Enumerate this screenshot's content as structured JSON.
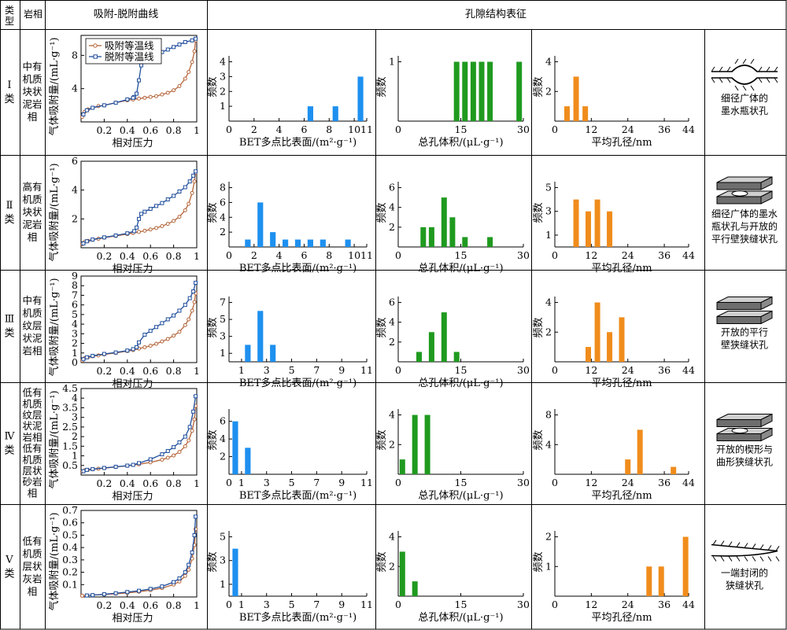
{
  "header": {
    "type_label": "类型",
    "facies_label": "岩相",
    "curve_label": "吸附-脱附曲线",
    "pore_label": "孔隙结构表征"
  },
  "axis_labels": {
    "iso_x": "相对压力",
    "iso_y": "气体吸附量/(mL·g⁻¹)",
    "freq": "频数",
    "bet_x": "BET多点比表面/(m²·g⁻¹)",
    "vol_x": "总孔体积/(μL·g⁻¹)",
    "pd_x": "平均孔径/nm"
  },
  "legend": {
    "adsorption": "吸附等温线",
    "desorption": "脱附等温线"
  },
  "colors": {
    "adsorption": "#b5653a",
    "desorption": "#1f4e9c",
    "bet_bar": "#1e90ef",
    "vol_bar": "#1f9a1f",
    "pd_bar": "#f08c1c"
  },
  "rows": [
    {
      "type_label": "Ⅰ类",
      "facies": [
        "中有",
        "机质",
        "块状",
        "泥岩",
        "相"
      ],
      "pore_type": [
        "细径广体的",
        "墨水瓶状孔"
      ],
      "pore_icon": "ink-bottle-pore-icon"
    },
    {
      "type_label": "Ⅱ类",
      "facies": [
        "高有",
        "机质",
        "块状",
        "泥岩",
        "相"
      ],
      "pore_type": [
        "细径广体的墨水",
        "瓶状孔与开放的",
        "平行壁狭缝状孔"
      ],
      "pore_icon": "ink-bottle-and-parallel-slit-icon"
    },
    {
      "type_label": "Ⅲ类",
      "facies": [
        "中有",
        "机质",
        "纹层",
        "状泥",
        "岩相"
      ],
      "pore_type": [
        "开放的平行",
        "壁狭缝状孔"
      ],
      "pore_icon": "parallel-slit-pore-icon"
    },
    {
      "type_label": "Ⅳ类",
      "facies": [
        "低有",
        "机质",
        "纹层",
        "状泥",
        "岩相",
        "低有",
        "机质",
        "层状",
        "砂岩",
        "相"
      ],
      "pore_type": [
        "开放的楔形与",
        "曲形狭缝状孔"
      ],
      "pore_icon": "wedge-slit-pore-icon"
    },
    {
      "type_label": "Ⅴ类",
      "facies": [
        "低有",
        "机质",
        "层状",
        "灰岩",
        "相"
      ],
      "pore_type": [
        "一端封闭的",
        "狭缝状孔"
      ],
      "pore_icon": "closed-slit-pore-icon"
    }
  ],
  "chart_data": [
    {
      "type": "line",
      "panel": "isotherm",
      "row": 1,
      "xlabel": "相对压力",
      "ylabel": "气体吸附量/(mL·g⁻¹)",
      "xlim": [
        0,
        1.0
      ],
      "ylim": [
        0,
        10.4
      ],
      "xticks": [
        0.2,
        0.4,
        0.6,
        0.8,
        1.0
      ],
      "yticks": [
        4,
        8
      ],
      "legend": "top-left",
      "series": [
        {
          "name": "吸附等温线",
          "x": [
            0.01,
            0.03,
            0.06,
            0.1,
            0.15,
            0.2,
            0.3,
            0.4,
            0.45,
            0.5,
            0.55,
            0.6,
            0.65,
            0.7,
            0.75,
            0.8,
            0.85,
            0.9,
            0.93,
            0.96,
            0.98,
            0.99
          ],
          "y": [
            0.6,
            1.2,
            1.5,
            1.7,
            1.9,
            2.0,
            2.3,
            2.6,
            2.7,
            2.8,
            2.9,
            3.0,
            3.1,
            3.3,
            3.5,
            3.8,
            4.3,
            5.2,
            6.0,
            7.2,
            8.5,
            9.8
          ]
        },
        {
          "name": "脱附等温线",
          "x": [
            0.99,
            0.96,
            0.9,
            0.85,
            0.8,
            0.75,
            0.7,
            0.65,
            0.6,
            0.55,
            0.52,
            0.5,
            0.48,
            0.46,
            0.45,
            0.4,
            0.3,
            0.2,
            0.1,
            0.05,
            0.02
          ],
          "y": [
            10.0,
            9.8,
            9.6,
            9.3,
            9.0,
            8.7,
            8.4,
            8.0,
            7.6,
            7.2,
            6.8,
            5.0,
            3.4,
            3.0,
            2.9,
            2.7,
            2.3,
            2.0,
            1.7,
            1.4,
            0.9
          ]
        }
      ]
    },
    {
      "type": "line",
      "panel": "isotherm",
      "row": 2,
      "xlabel": "相对压力",
      "ylabel": "气体吸附量/(mL·g⁻¹)",
      "xlim": [
        0,
        1.0
      ],
      "ylim": [
        0,
        6
      ],
      "xticks": [
        0.2,
        0.4,
        0.6,
        0.8,
        1.0
      ],
      "yticks": [
        2,
        4,
        6
      ],
      "series": [
        {
          "name": "吸附等温线",
          "x": [
            0.01,
            0.03,
            0.06,
            0.1,
            0.15,
            0.2,
            0.3,
            0.4,
            0.45,
            0.5,
            0.55,
            0.6,
            0.65,
            0.7,
            0.75,
            0.8,
            0.85,
            0.9,
            0.93,
            0.96,
            0.98,
            0.99
          ],
          "y": [
            0.25,
            0.4,
            0.48,
            0.55,
            0.62,
            0.7,
            0.82,
            0.95,
            1.02,
            1.1,
            1.18,
            1.27,
            1.37,
            1.5,
            1.66,
            1.86,
            2.15,
            2.6,
            3.05,
            3.8,
            4.6,
            5.2
          ]
        },
        {
          "name": "脱附等温线",
          "x": [
            0.99,
            0.97,
            0.94,
            0.9,
            0.85,
            0.8,
            0.75,
            0.7,
            0.65,
            0.6,
            0.55,
            0.52,
            0.5,
            0.48,
            0.46,
            0.4,
            0.3,
            0.2,
            0.1,
            0.05,
            0.02
          ],
          "y": [
            5.3,
            5.0,
            4.6,
            4.2,
            3.9,
            3.6,
            3.35,
            3.1,
            2.9,
            2.7,
            2.5,
            2.35,
            2.0,
            1.4,
            1.15,
            1.0,
            0.85,
            0.72,
            0.57,
            0.45,
            0.3
          ]
        }
      ]
    },
    {
      "type": "line",
      "panel": "isotherm",
      "row": 3,
      "xlabel": "相对压力",
      "ylabel": "气体吸附量/(mL·g⁻¹)",
      "xlim": [
        0,
        1.0
      ],
      "ylim": [
        0,
        9
      ],
      "xticks": [
        0.2,
        0.4,
        0.6,
        0.8,
        1.0
      ],
      "yticks": [
        0,
        1,
        2,
        3,
        4,
        5,
        6,
        7,
        8,
        9
      ],
      "series": [
        {
          "name": "吸附等温线",
          "x": [
            0.01,
            0.03,
            0.06,
            0.1,
            0.15,
            0.2,
            0.3,
            0.4,
            0.45,
            0.5,
            0.55,
            0.6,
            0.65,
            0.7,
            0.75,
            0.8,
            0.85,
            0.9,
            0.93,
            0.96,
            0.98,
            0.99
          ],
          "y": [
            0.2,
            0.45,
            0.55,
            0.65,
            0.75,
            0.85,
            1.0,
            1.2,
            1.3,
            1.45,
            1.6,
            1.75,
            1.95,
            2.2,
            2.45,
            2.8,
            3.2,
            3.9,
            4.5,
            5.4,
            6.3,
            7.2
          ]
        },
        {
          "name": "脱附等温线",
          "x": [
            0.99,
            0.97,
            0.94,
            0.9,
            0.85,
            0.8,
            0.75,
            0.7,
            0.65,
            0.6,
            0.55,
            0.5,
            0.48,
            0.45,
            0.4,
            0.3,
            0.2,
            0.1,
            0.05,
            0.02
          ],
          "y": [
            8.3,
            7.4,
            6.7,
            6.0,
            5.4,
            4.9,
            4.5,
            4.1,
            3.7,
            3.3,
            2.9,
            2.1,
            1.6,
            1.4,
            1.25,
            1.05,
            0.9,
            0.7,
            0.55,
            0.35
          ]
        }
      ]
    },
    {
      "type": "line",
      "panel": "isotherm",
      "row": 4,
      "xlabel": "相对压力",
      "ylabel": "气体吸附量/(mL·g⁻¹)",
      "xlim": [
        0,
        1.0
      ],
      "ylim": [
        0,
        4.5
      ],
      "xticks": [
        0.2,
        0.4,
        0.6,
        0.8,
        1.0
      ],
      "yticks": [
        0.5,
        1.0,
        1.5,
        2.0,
        2.5,
        3.0,
        3.5,
        4.0,
        4.5
      ],
      "series": [
        {
          "name": "吸附等温线",
          "x": [
            0.01,
            0.03,
            0.06,
            0.1,
            0.15,
            0.2,
            0.3,
            0.4,
            0.5,
            0.6,
            0.7,
            0.75,
            0.8,
            0.85,
            0.9,
            0.93,
            0.96,
            0.98,
            0.99
          ],
          "y": [
            0.18,
            0.24,
            0.27,
            0.3,
            0.33,
            0.36,
            0.42,
            0.48,
            0.56,
            0.66,
            0.8,
            0.9,
            1.02,
            1.2,
            1.5,
            1.8,
            2.3,
            2.9,
            3.6
          ]
        },
        {
          "name": "脱附等温线",
          "x": [
            0.99,
            0.97,
            0.94,
            0.9,
            0.85,
            0.8,
            0.75,
            0.7,
            0.6,
            0.5,
            0.45,
            0.4,
            0.3,
            0.2,
            0.1,
            0.05,
            0.02
          ],
          "y": [
            4.1,
            3.3,
            2.5,
            2.0,
            1.7,
            1.45,
            1.25,
            1.08,
            0.82,
            0.62,
            0.53,
            0.49,
            0.43,
            0.37,
            0.31,
            0.27,
            0.2
          ]
        }
      ]
    },
    {
      "type": "line",
      "panel": "isotherm",
      "row": 5,
      "xlabel": "相对压力",
      "ylabel": "气体吸附量/(mL·g⁻¹)",
      "xlim": [
        0,
        1.0
      ],
      "ylim": [
        0,
        0.7
      ],
      "xticks": [
        0.2,
        0.4,
        0.6,
        0.8,
        1.0
      ],
      "yticks": [
        0.1,
        0.2,
        0.3,
        0.4,
        0.5,
        0.6,
        0.7
      ],
      "series": [
        {
          "name": "吸附等温线",
          "x": [
            0.01,
            0.05,
            0.1,
            0.2,
            0.3,
            0.4,
            0.5,
            0.6,
            0.7,
            0.8,
            0.85,
            0.9,
            0.93,
            0.96,
            0.98,
            0.99
          ],
          "y": [
            0.01,
            0.012,
            0.015,
            0.02,
            0.026,
            0.033,
            0.042,
            0.055,
            0.072,
            0.1,
            0.125,
            0.17,
            0.22,
            0.31,
            0.42,
            0.55
          ]
        },
        {
          "name": "脱附等温线",
          "x": [
            0.99,
            0.98,
            0.96,
            0.93,
            0.9,
            0.85,
            0.8,
            0.7,
            0.6,
            0.5,
            0.4,
            0.3,
            0.2,
            0.1,
            0.05
          ],
          "y": [
            0.65,
            0.5,
            0.36,
            0.26,
            0.2,
            0.15,
            0.12,
            0.085,
            0.065,
            0.05,
            0.04,
            0.03,
            0.022,
            0.015,
            0.012
          ]
        }
      ]
    },
    {
      "type": "bar",
      "panel": "bet",
      "row": 1,
      "xlabel": "BET多点比表面/(m²·g⁻¹)",
      "ylabel": "频数",
      "xlim": [
        0,
        11
      ],
      "ylim": [
        0,
        4.4
      ],
      "xticks": [
        0,
        2,
        4,
        6,
        8,
        10,
        11
      ],
      "yticks": [
        1,
        2,
        3,
        4
      ],
      "x": [
        6.5,
        8.5,
        10.5
      ],
      "values": [
        1,
        1,
        3
      ]
    },
    {
      "type": "bar",
      "panel": "bet",
      "row": 2,
      "xlabel": "BET多点比表面/(m²·g⁻¹)",
      "ylabel": "频数",
      "xlim": [
        0,
        11
      ],
      "ylim": [
        0,
        8.8
      ],
      "xticks": [
        0,
        2,
        4,
        6,
        8,
        10,
        11
      ],
      "yticks": [
        2,
        4,
        6,
        8
      ],
      "x": [
        1.5,
        2.5,
        3.5,
        4.5,
        5.5,
        6.5,
        7.5,
        9.5
      ],
      "values": [
        1,
        6,
        2,
        1,
        1,
        1,
        1,
        1
      ]
    },
    {
      "type": "bar",
      "panel": "bet",
      "row": 3,
      "xlabel": "BET多点比表面/(m²·g⁻¹)",
      "ylabel": "频数",
      "xlim": [
        0,
        11
      ],
      "ylim": [
        0,
        7.7
      ],
      "xticks": [
        1,
        3,
        5,
        7,
        9,
        11
      ],
      "yticks": [
        1,
        3,
        5,
        7
      ],
      "x": [
        1.5,
        2.5,
        3.5
      ],
      "values": [
        2,
        6,
        2
      ]
    },
    {
      "type": "bar",
      "panel": "bet",
      "row": 4,
      "xlabel": "BET多点比表面/(m²·g⁻¹)",
      "ylabel": "频数",
      "xlim": [
        0,
        11
      ],
      "ylim": [
        0,
        7.4
      ],
      "xticks": [
        0,
        1,
        3,
        5,
        7,
        9,
        11
      ],
      "yticks": [
        2,
        4,
        6
      ],
      "x": [
        0.5,
        1.5
      ],
      "values": [
        6,
        3
      ]
    },
    {
      "type": "bar",
      "panel": "bet",
      "row": 5,
      "xlabel": "BET多点比表面/(m²·g⁻¹)",
      "ylabel": "频数",
      "xlim": [
        0,
        11
      ],
      "ylim": [
        0,
        5.5
      ],
      "xticks": [
        0,
        1,
        3,
        5,
        7,
        9,
        11
      ],
      "yticks": [
        1,
        3,
        5
      ],
      "x": [
        0.5
      ],
      "values": [
        4
      ]
    },
    {
      "type": "bar",
      "panel": "volume",
      "row": 1,
      "xlabel": "总孔体积/(μL·g⁻¹)",
      "ylabel": "频数",
      "xlim": [
        0,
        30
      ],
      "ylim": [
        0,
        1.1
      ],
      "xticks": [
        0,
        15,
        30
      ],
      "yticks": [
        1
      ],
      "x": [
        14,
        16,
        18,
        20,
        22,
        29
      ],
      "values": [
        1,
        1,
        1,
        1,
        1,
        1
      ]
    },
    {
      "type": "bar",
      "panel": "volume",
      "row": 2,
      "xlabel": "总孔体积/(μL·g⁻¹)",
      "ylabel": "频数",
      "xlim": [
        0,
        30
      ],
      "ylim": [
        0,
        6.6
      ],
      "xticks": [
        0,
        15,
        30
      ],
      "yticks": [
        2,
        4,
        6
      ],
      "x": [
        6,
        8,
        11,
        13,
        16,
        22
      ],
      "values": [
        2,
        2,
        5,
        3,
        1,
        1
      ]
    },
    {
      "type": "bar",
      "panel": "volume",
      "row": 3,
      "xlabel": "总孔体积/(μL·g⁻¹)",
      "ylabel": "频数",
      "xlim": [
        0,
        30
      ],
      "ylim": [
        0,
        6.6
      ],
      "xticks": [
        0,
        15,
        30
      ],
      "yticks": [
        2,
        4,
        6
      ],
      "x": [
        5,
        8,
        11,
        14
      ],
      "values": [
        1,
        3,
        5,
        1
      ]
    },
    {
      "type": "bar",
      "panel": "volume",
      "row": 4,
      "xlabel": "总孔体积/(μL·g⁻¹)",
      "ylabel": "频数",
      "xlim": [
        0,
        30
      ],
      "ylim": [
        0,
        4.4
      ],
      "xticks": [
        0,
        15,
        30
      ],
      "yticks": [
        2,
        4
      ],
      "x": [
        1,
        4,
        7
      ],
      "values": [
        1,
        4,
        4
      ]
    },
    {
      "type": "bar",
      "panel": "volume",
      "row": 5,
      "xlabel": "总孔体积/(μL·g⁻¹)",
      "ylabel": "频数",
      "xlim": [
        0,
        30
      ],
      "ylim": [
        0,
        4.4
      ],
      "xticks": [
        0,
        15,
        30
      ],
      "yticks": [
        2,
        4
      ],
      "x": [
        1,
        4
      ],
      "values": [
        3,
        1
      ]
    },
    {
      "type": "bar",
      "panel": "pore-diameter",
      "row": 1,
      "xlabel": "平均孔径/nm",
      "ylabel": "频数",
      "xlim": [
        0,
        44
      ],
      "ylim": [
        0,
        4.4
      ],
      "xticks": [
        0,
        12,
        24,
        36,
        44
      ],
      "yticks": [
        2,
        4
      ],
      "x": [
        4,
        7,
        10
      ],
      "values": [
        1,
        3,
        1
      ]
    },
    {
      "type": "bar",
      "panel": "pore-diameter",
      "row": 2,
      "xlabel": "平均孔径/nm",
      "ylabel": "频数",
      "xlim": [
        0,
        44
      ],
      "ylim": [
        0,
        5.5
      ],
      "xticks": [
        0,
        12,
        24,
        36,
        44
      ],
      "yticks": [
        1,
        3,
        5
      ],
      "x": [
        7,
        11,
        14,
        18
      ],
      "values": [
        4,
        3,
        4,
        3
      ]
    },
    {
      "type": "bar",
      "panel": "pore-diameter",
      "row": 3,
      "xlabel": "平均孔径/nm",
      "ylabel": "频数",
      "xlim": [
        0,
        44
      ],
      "ylim": [
        0,
        4.4
      ],
      "xticks": [
        0,
        12,
        24,
        36,
        44
      ],
      "yticks": [
        2,
        4
      ],
      "x": [
        11,
        14,
        18,
        22
      ],
      "values": [
        1,
        4,
        2,
        3
      ]
    },
    {
      "type": "bar",
      "panel": "pore-diameter",
      "row": 4,
      "xlabel": "平均孔径/nm",
      "ylabel": "频数",
      "xlim": [
        0,
        44
      ],
      "ylim": [
        0,
        8.8
      ],
      "xticks": [
        0,
        12,
        24,
        36,
        44
      ],
      "yticks": [
        4,
        8
      ],
      "x": [
        24,
        28,
        39
      ],
      "values": [
        2,
        6,
        1
      ]
    },
    {
      "type": "bar",
      "panel": "pore-diameter",
      "row": 5,
      "xlabel": "平均孔径/nm",
      "ylabel": "频数",
      "xlim": [
        0,
        44
      ],
      "ylim": [
        0,
        2.2
      ],
      "xticks": [
        0,
        12,
        24,
        36,
        44
      ],
      "yticks": [
        1,
        2
      ],
      "x": [
        31,
        35,
        43
      ],
      "values": [
        1,
        1,
        2
      ]
    }
  ]
}
